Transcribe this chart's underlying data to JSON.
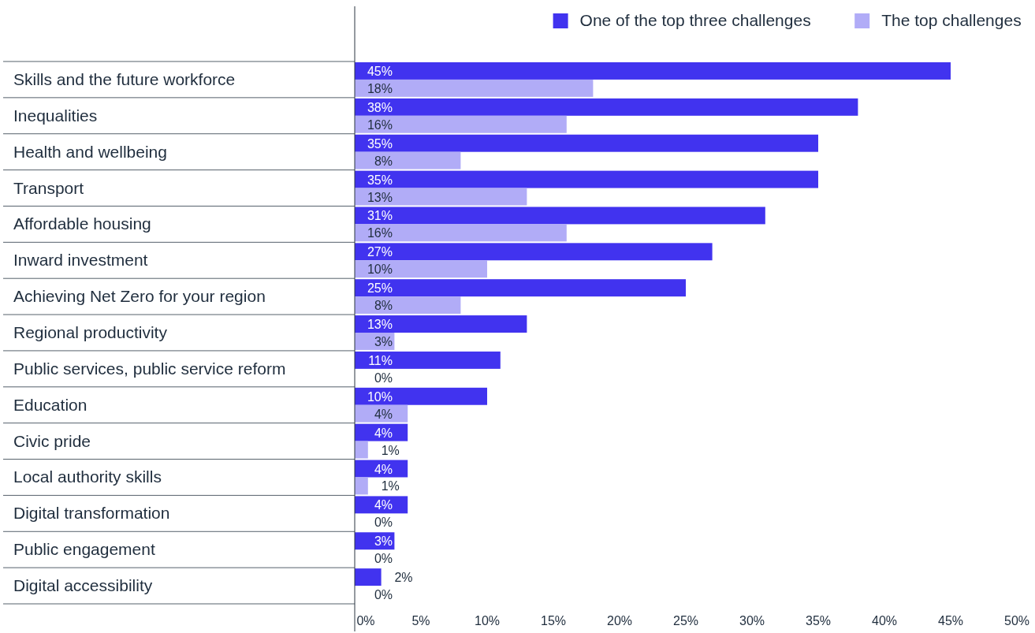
{
  "chart_data": {
    "type": "bar",
    "orientation": "horizontal",
    "categories": [
      "Skills and the future workforce",
      "Inequalities",
      "Health and wellbeing",
      "Transport",
      "Affordable housing",
      "Inward investment",
      "Achieving Net Zero for your region",
      "Regional productivity",
      "Public services, public service reform",
      "Education",
      "Civic pride",
      "Local authority skills",
      "Digital transformation",
      "Public engagement",
      "Digital accessibility"
    ],
    "series": [
      {
        "name": "One of the top three challenges",
        "color": "#4133ef",
        "values": [
          45,
          38,
          35,
          35,
          31,
          27,
          25,
          13,
          11,
          10,
          4,
          4,
          4,
          3,
          2
        ],
        "value_labels": [
          "45%",
          "38%",
          "35%",
          "35%",
          "31%",
          "27%",
          "25%",
          "13%",
          "11%",
          "10%",
          "4%",
          "4%",
          "4%",
          "3%",
          "2%"
        ]
      },
      {
        "name": "The top challenges",
        "color": "#b1acf7",
        "values": [
          18,
          16,
          8,
          13,
          16,
          10,
          8,
          3,
          0,
          4,
          1,
          1,
          0,
          0,
          0
        ],
        "value_labels": [
          "18%",
          "16%",
          "8%",
          "13%",
          "16%",
          "10%",
          "8%",
          "3%",
          "0%",
          "4%",
          "1%",
          "1%",
          "0%",
          "0%",
          "0%"
        ]
      }
    ],
    "xlim": [
      0,
      50
    ],
    "xticks": [
      {
        "value": 0,
        "label": "0%"
      },
      {
        "value": 5,
        "label": "5%"
      },
      {
        "value": 10,
        "label": "10%"
      },
      {
        "value": 15,
        "label": "15%"
      },
      {
        "value": 20,
        "label": "20%"
      },
      {
        "value": 25,
        "label": "25%"
      },
      {
        "value": 30,
        "label": "30%"
      },
      {
        "value": 35,
        "label": "35%"
      },
      {
        "value": 40,
        "label": "40%"
      },
      {
        "value": 45,
        "label": "45%"
      },
      {
        "value": 50,
        "label": "50%"
      }
    ],
    "grid": false,
    "legend": "top right"
  }
}
